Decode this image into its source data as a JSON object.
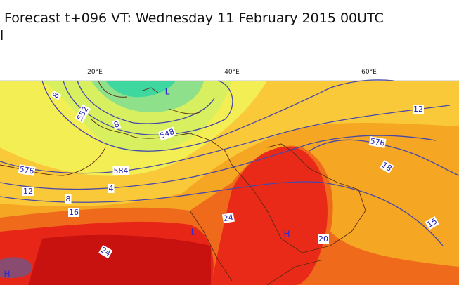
{
  "header": {
    "title": "Forecast t+096 VT: Wednesday 11 February 2015 00UTC",
    "subtitle": "l"
  },
  "map": {
    "longitude_labels": [
      "20°E",
      "40°E",
      "60°E"
    ],
    "contour_labels": [
      "8",
      "552",
      "8",
      "548",
      "584",
      "576",
      "4",
      "12",
      "8",
      "16",
      "24",
      "20",
      "24",
      "15",
      "18",
      "576",
      "12"
    ],
    "pressure_centers": [
      "L",
      "L",
      "H",
      "H"
    ]
  }
}
